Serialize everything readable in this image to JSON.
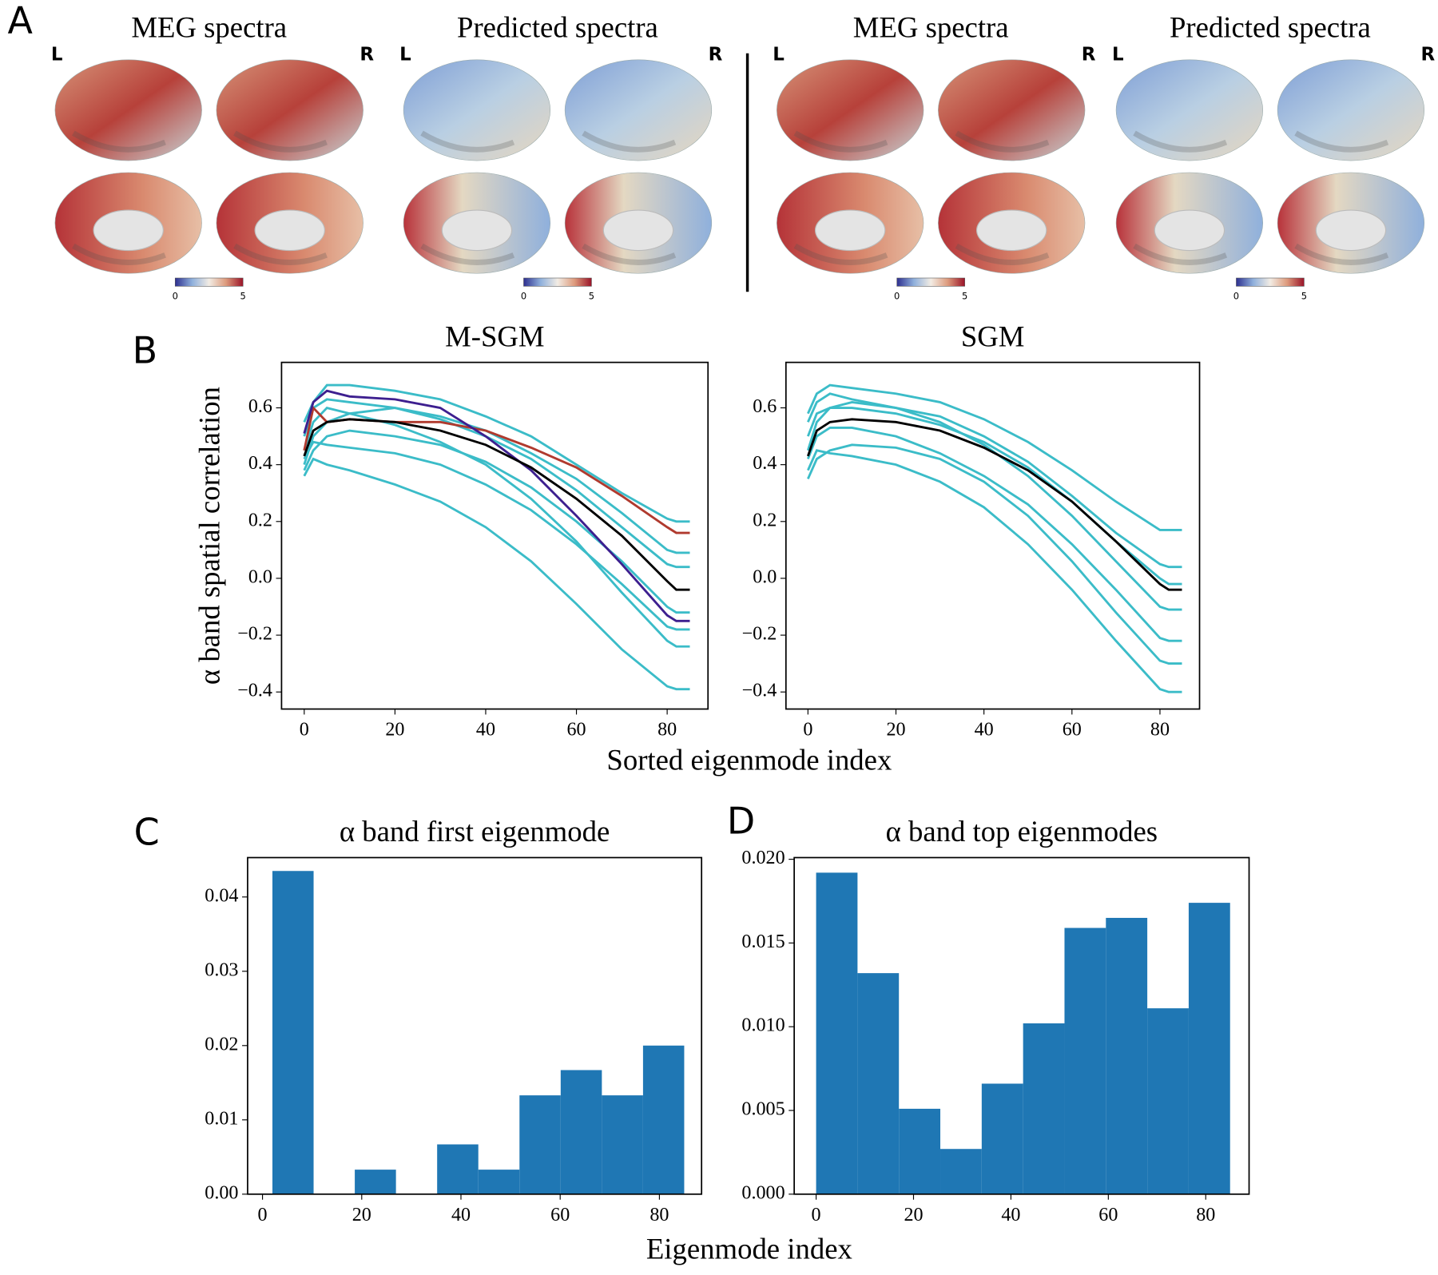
{
  "figure": {
    "panel_labels": [
      "A",
      "B",
      "C",
      "D"
    ],
    "b_xlabel": "Sorted eigenmode index",
    "b_ylabel": "α band spatial correlation",
    "cd_xlabel": "Eigenmode index"
  },
  "panel_a": {
    "groups": [
      {
        "title": "MEG spectra",
        "left": "L",
        "right": "R",
        "colorbar_ticks": [
          0,
          5
        ]
      },
      {
        "title": "Predicted spectra",
        "left": "L",
        "right": "R",
        "colorbar_ticks": [
          0,
          5
        ]
      },
      {
        "title": "MEG spectra",
        "left": "L",
        "right": "R",
        "colorbar_ticks": [
          0,
          5
        ]
      },
      {
        "title": "Predicted spectra",
        "left": "L",
        "right": "R",
        "colorbar_ticks": [
          0,
          5
        ]
      }
    ]
  },
  "chart_data": [
    {
      "type": "line",
      "title": "M-SGM",
      "x": [
        0,
        2,
        5,
        10,
        20,
        30,
        40,
        50,
        60,
        70,
        80,
        82,
        85
      ],
      "xlim": [
        -5,
        89
      ],
      "ylim": [
        -0.46,
        0.76
      ],
      "xticks": [
        0,
        20,
        40,
        60,
        80
      ],
      "yticks": [
        {
          "value": -0.4,
          "label": "−0.4"
        },
        {
          "value": -0.2,
          "label": "−0.2"
        },
        {
          "value": 0,
          "label": "0.0"
        },
        0.2,
        0.4,
        0.6
      ],
      "series": [
        {
          "color": "#3bbcc8",
          "values": [
            0.55,
            0.62,
            0.68,
            0.68,
            0.66,
            0.63,
            0.57,
            0.5,
            0.4,
            0.3,
            0.21,
            0.2,
            0.2
          ]
        },
        {
          "color": "#3bbcc8",
          "values": [
            0.4,
            0.5,
            0.55,
            0.58,
            0.6,
            0.56,
            0.5,
            0.42,
            0.31,
            0.18,
            0.05,
            0.04,
            0.04
          ]
        },
        {
          "color": "#3bbcc8",
          "values": [
            0.38,
            0.45,
            0.5,
            0.52,
            0.5,
            0.47,
            0.41,
            0.32,
            0.2,
            0.06,
            -0.1,
            -0.12,
            -0.12
          ]
        },
        {
          "color": "#3bbcc8",
          "values": [
            0.36,
            0.42,
            0.4,
            0.38,
            0.33,
            0.27,
            0.18,
            0.06,
            -0.09,
            -0.25,
            -0.38,
            -0.39,
            -0.39
          ]
        },
        {
          "color": "#3bbcc8",
          "values": [
            0.45,
            0.55,
            0.6,
            0.58,
            0.54,
            0.48,
            0.4,
            0.28,
            0.13,
            -0.05,
            -0.22,
            -0.24,
            -0.24
          ]
        },
        {
          "color": "#3bbcc8",
          "values": [
            0.42,
            0.48,
            0.47,
            0.46,
            0.44,
            0.4,
            0.33,
            0.24,
            0.12,
            -0.02,
            -0.17,
            -0.18,
            -0.18
          ]
        },
        {
          "color": "#3bbcc8",
          "values": [
            0.5,
            0.6,
            0.63,
            0.62,
            0.6,
            0.57,
            0.52,
            0.44,
            0.35,
            0.23,
            0.1,
            0.09,
            0.09
          ]
        },
        {
          "color": "#b03a2e",
          "values": [
            0.45,
            0.6,
            0.55,
            0.56,
            0.55,
            0.55,
            0.52,
            0.46,
            0.39,
            0.29,
            0.18,
            0.16,
            0.16
          ]
        },
        {
          "color": "#3d1f8f",
          "values": [
            0.51,
            0.62,
            0.66,
            0.64,
            0.63,
            0.6,
            0.5,
            0.38,
            0.22,
            0.05,
            -0.13,
            -0.15,
            -0.15
          ]
        },
        {
          "color": "#000000",
          "values": [
            0.43,
            0.52,
            0.55,
            0.56,
            0.55,
            0.52,
            0.47,
            0.39,
            0.28,
            0.15,
            -0.01,
            -0.04,
            -0.04
          ]
        }
      ]
    },
    {
      "type": "line",
      "title": "SGM",
      "x": [
        0,
        2,
        5,
        10,
        20,
        30,
        40,
        50,
        60,
        70,
        80,
        82,
        85
      ],
      "xlim": [
        -5,
        89
      ],
      "ylim": [
        -0.46,
        0.76
      ],
      "xticks": [
        0,
        20,
        40,
        60,
        80
      ],
      "yticks": [
        {
          "value": -0.4,
          "label": "−0.4"
        },
        {
          "value": -0.2,
          "label": "−0.2"
        },
        {
          "value": 0,
          "label": "0.0"
        },
        0.2,
        0.4,
        0.6
      ],
      "series": [
        {
          "color": "#3bbcc8",
          "values": [
            0.58,
            0.65,
            0.68,
            0.67,
            0.65,
            0.62,
            0.56,
            0.48,
            0.38,
            0.27,
            0.17,
            0.17,
            0.17
          ]
        },
        {
          "color": "#3bbcc8",
          "values": [
            0.35,
            0.42,
            0.45,
            0.47,
            0.46,
            0.42,
            0.34,
            0.22,
            0.06,
            -0.12,
            -0.29,
            -0.3,
            -0.3
          ]
        },
        {
          "color": "#3bbcc8",
          "values": [
            0.38,
            0.45,
            0.44,
            0.43,
            0.4,
            0.34,
            0.25,
            0.12,
            -0.04,
            -0.22,
            -0.39,
            -0.4,
            -0.4
          ]
        },
        {
          "color": "#3bbcc8",
          "values": [
            0.5,
            0.58,
            0.6,
            0.6,
            0.58,
            0.54,
            0.48,
            0.39,
            0.27,
            0.13,
            0.0,
            -0.02,
            -0.02
          ]
        },
        {
          "color": "#3bbcc8",
          "values": [
            0.45,
            0.55,
            0.6,
            0.62,
            0.6,
            0.57,
            0.5,
            0.41,
            0.29,
            0.16,
            0.05,
            0.04,
            0.04
          ]
        },
        {
          "color": "#3bbcc8",
          "values": [
            0.55,
            0.62,
            0.65,
            0.63,
            0.6,
            0.55,
            0.47,
            0.36,
            0.22,
            0.06,
            -0.1,
            -0.11,
            -0.11
          ]
        },
        {
          "color": "#3bbcc8",
          "values": [
            0.42,
            0.5,
            0.53,
            0.53,
            0.5,
            0.44,
            0.36,
            0.26,
            0.12,
            -0.04,
            -0.21,
            -0.22,
            -0.22
          ]
        },
        {
          "color": "#000000",
          "values": [
            0.43,
            0.52,
            0.55,
            0.56,
            0.55,
            0.52,
            0.46,
            0.38,
            0.27,
            0.13,
            -0.02,
            -0.04,
            -0.04
          ]
        }
      ]
    },
    {
      "type": "histogram",
      "title": "α band first eigenmode",
      "color": "#1f77b4",
      "bins": [
        2,
        10.3,
        18.6,
        26.9,
        35.2,
        43.5,
        51.8,
        60.1,
        68.4,
        76.7,
        85
      ],
      "values": [
        0.0435,
        0,
        0.0033,
        0,
        0.0067,
        0.0033,
        0.0133,
        0.0167,
        0.0133,
        0.02
      ],
      "xlim": [
        -3,
        88.5
      ],
      "ylim": [
        0,
        0.0453
      ],
      "xticks": [
        0,
        20,
        40,
        60,
        80
      ],
      "yticks": [
        {
          "value": 0,
          "label": "0.00"
        },
        0.01,
        0.02,
        0.03,
        0.04
      ]
    },
    {
      "type": "histogram",
      "title": "α band top eigenmodes",
      "color": "#1f77b4",
      "bins": [
        0,
        8.5,
        17,
        25.5,
        34,
        42.5,
        51,
        59.5,
        68,
        76.5,
        85
      ],
      "values": [
        0.0192,
        0.0132,
        0.0051,
        0.0027,
        0.0066,
        0.0102,
        0.0159,
        0.0165,
        0.0111,
        0.0174
      ],
      "xlim": [
        -4.5,
        88.9
      ],
      "ylim": [
        0,
        0.0201
      ],
      "xticks": [
        0,
        20,
        40,
        60,
        80
      ],
      "yticks": [
        {
          "value": 0,
          "label": "0.000"
        },
        0.005,
        {
          "value": 0.01,
          "label": "0.010"
        },
        0.015,
        {
          "value": 0.02,
          "label": "0.020"
        }
      ]
    }
  ]
}
